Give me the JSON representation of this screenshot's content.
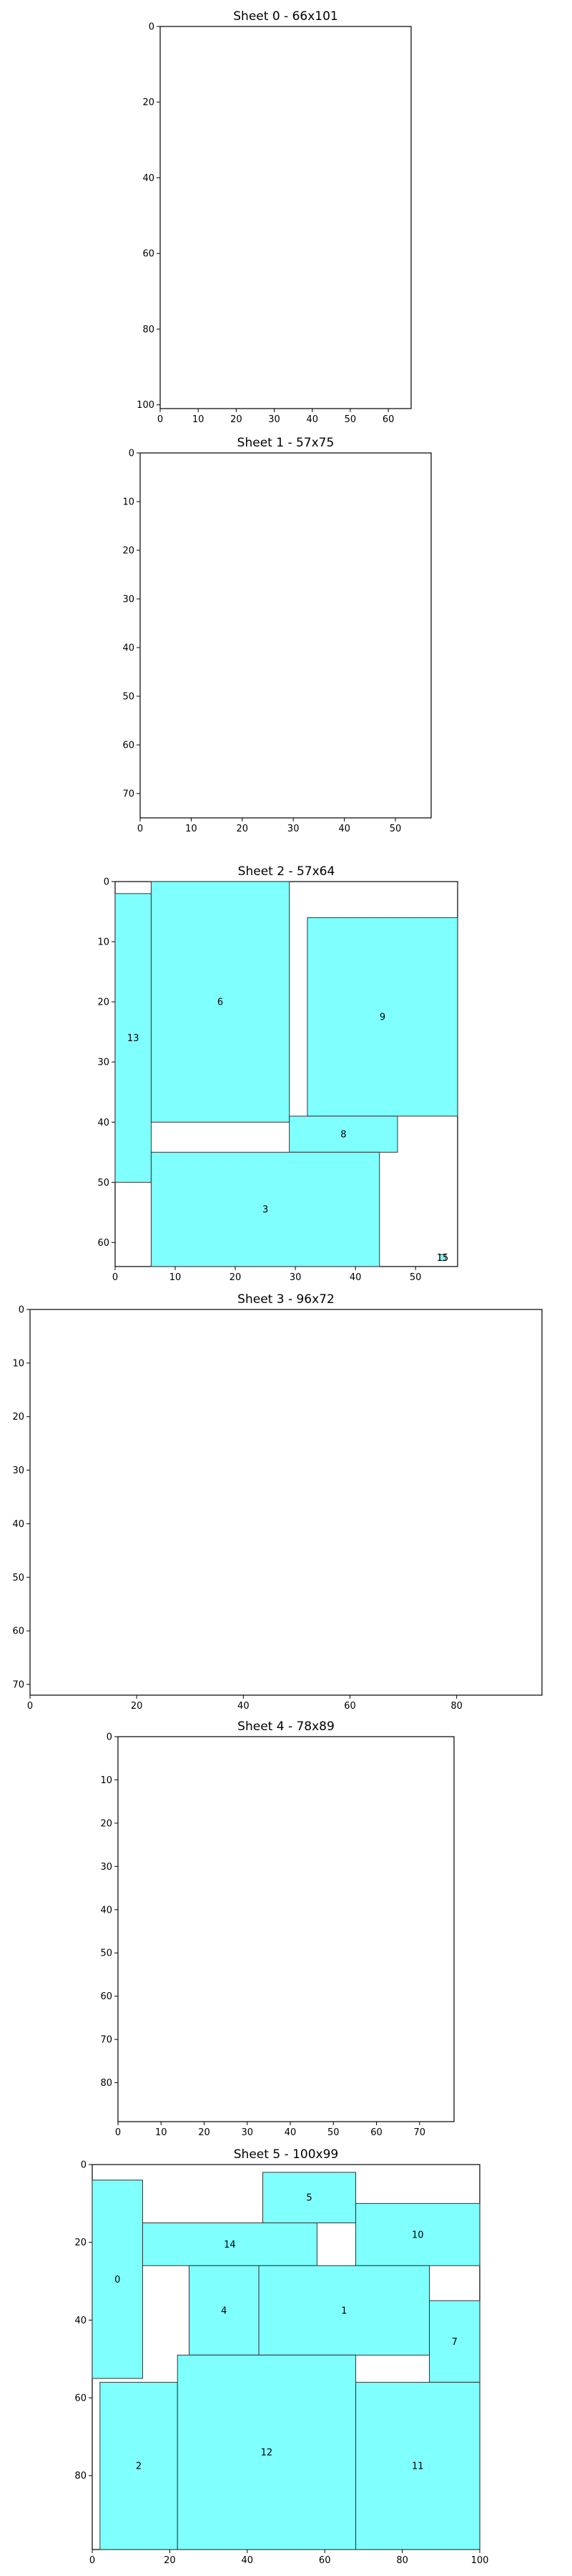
{
  "chart_data": {
    "type": "rectangle_packing",
    "piece_fill": "#80ffff",
    "piece_edge": "#333333",
    "sheets": [
      {
        "title": "Sheet 0 - 66x101",
        "width": 66,
        "height": 101,
        "xticks": [
          0,
          10,
          20,
          30,
          40,
          50,
          60
        ],
        "yticks": [
          0,
          20,
          40,
          60,
          80,
          100
        ],
        "pieces": []
      },
      {
        "title": "Sheet 1 - 57x75",
        "width": 57,
        "height": 75,
        "xticks": [
          0,
          10,
          20,
          30,
          40,
          50
        ],
        "yticks": [
          0,
          10,
          20,
          30,
          40,
          50,
          60,
          70
        ],
        "pieces": []
      },
      {
        "title": "Sheet 2 - 57x64",
        "width": 57,
        "height": 64,
        "xticks": [
          0,
          10,
          20,
          30,
          40,
          50
        ],
        "yticks": [
          0,
          10,
          20,
          30,
          40,
          50,
          60
        ],
        "pieces": [
          {
            "id": "13",
            "x": 0,
            "y": 2,
            "w": 6,
            "h": 48
          },
          {
            "id": "6",
            "x": 6,
            "y": 0,
            "w": 23,
            "h": 40
          },
          {
            "id": "9",
            "x": 32,
            "y": 6,
            "w": 25,
            "h": 33
          },
          {
            "id": "8",
            "x": 29,
            "y": 39,
            "w": 18,
            "h": 6
          },
          {
            "id": "3",
            "x": 6,
            "y": 45,
            "w": 38,
            "h": 19
          },
          {
            "id": "15",
            "x": 54,
            "y": 62,
            "w": 1,
            "h": 1
          }
        ]
      },
      {
        "title": "Sheet 3 - 96x72",
        "width": 96,
        "height": 72,
        "xticks": [
          0,
          20,
          40,
          60,
          80
        ],
        "yticks": [
          0,
          10,
          20,
          30,
          40,
          50,
          60,
          70
        ],
        "pieces": []
      },
      {
        "title": "Sheet 4 - 78x89",
        "width": 78,
        "height": 89,
        "xticks": [
          0,
          10,
          20,
          30,
          40,
          50,
          60,
          70
        ],
        "yticks": [
          0,
          10,
          20,
          30,
          40,
          50,
          60,
          70,
          80
        ],
        "pieces": []
      },
      {
        "title": "Sheet 5 - 100x99",
        "width": 100,
        "height": 99,
        "xticks": [
          0,
          20,
          40,
          60,
          80,
          100
        ],
        "yticks": [
          0,
          20,
          40,
          60,
          80
        ],
        "pieces": [
          {
            "id": "0",
            "x": 0,
            "y": 4,
            "w": 13,
            "h": 51
          },
          {
            "id": "5",
            "x": 44,
            "y": 2,
            "w": 24,
            "h": 13
          },
          {
            "id": "14",
            "x": 13,
            "y": 15,
            "w": 45,
            "h": 11
          },
          {
            "id": "10",
            "x": 68,
            "y": 10,
            "w": 32,
            "h": 16
          },
          {
            "id": "4",
            "x": 25,
            "y": 26,
            "w": 18,
            "h": 23
          },
          {
            "id": "1",
            "x": 43,
            "y": 26,
            "w": 44,
            "h": 23
          },
          {
            "id": "7",
            "x": 87,
            "y": 35,
            "w": 13,
            "h": 21
          },
          {
            "id": "2",
            "x": 2,
            "y": 56,
            "w": 20,
            "h": 43
          },
          {
            "id": "12",
            "x": 22,
            "y": 49,
            "w": 46,
            "h": 50
          },
          {
            "id": "11",
            "x": 68,
            "y": 56,
            "w": 32,
            "h": 43
          }
        ]
      }
    ]
  }
}
